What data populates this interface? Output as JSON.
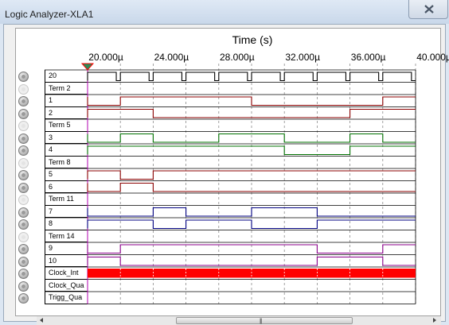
{
  "window": {
    "title": "Logic Analyzer-XLA1"
  },
  "axis": {
    "title": "Time (s)",
    "ticks": [
      "20.000µ",
      "24.000µ",
      "28.000µ",
      "32.000µ",
      "36.000µ",
      "40.000µ"
    ]
  },
  "channels": [
    {
      "label": "20",
      "led": true
    },
    {
      "label": "Term 2",
      "led": false
    },
    {
      "label": "1",
      "led": true
    },
    {
      "label": "2",
      "led": true
    },
    {
      "label": "Term 5",
      "led": false
    },
    {
      "label": "3",
      "led": true
    },
    {
      "label": "4",
      "led": true
    },
    {
      "label": "Term 8",
      "led": false
    },
    {
      "label": "5",
      "led": true
    },
    {
      "label": "6",
      "led": true
    },
    {
      "label": "Term 11",
      "led": false
    },
    {
      "label": "7",
      "led": true
    },
    {
      "label": "8",
      "led": true
    },
    {
      "label": "Term 14",
      "led": false
    },
    {
      "label": "9",
      "led": true
    },
    {
      "label": "10",
      "led": true
    },
    {
      "label": "Clock_Int",
      "led": true
    },
    {
      "label": "Clock_Qua",
      "led": true
    },
    {
      "label": "Trigg_Qua",
      "led": true
    }
  ],
  "waveforms": {
    "time_start_us": 20.0,
    "time_end_us": 40.0,
    "signals": [
      {
        "channel": "20",
        "color": "#000000",
        "type": "pulse",
        "period_us": 2.0,
        "high_us": 1.75
      },
      {
        "channel": "1",
        "color": "#8b0000",
        "initial": 0,
        "edges_us": [
          22.0,
          30.0,
          38.0
        ]
      },
      {
        "channel": "2",
        "color": "#8b0000",
        "initial": 1,
        "edges_us": [
          24.0,
          36.0
        ]
      },
      {
        "channel": "3",
        "color": "#007000",
        "initial": 0,
        "edges_us": [
          22.0,
          24.0,
          28.0,
          32.0,
          36.0,
          38.0
        ]
      },
      {
        "channel": "4",
        "color": "#007000",
        "initial": 1,
        "edges_us": [
          32.0,
          36.0
        ]
      },
      {
        "channel": "5",
        "color": "#8b0000",
        "initial": 1,
        "edges_us": [
          22.0,
          24.0
        ]
      },
      {
        "channel": "6",
        "color": "#8b0000",
        "initial": 0,
        "edges_us": [
          22.0,
          24.0
        ]
      },
      {
        "channel": "7",
        "color": "#000080",
        "initial": 0,
        "edges_us": [
          24.0,
          26.0,
          30.0,
          34.0
        ]
      },
      {
        "channel": "8",
        "color": "#000080",
        "initial": 1,
        "edges_us": [
          24.0,
          26.0,
          30.0,
          34.0
        ]
      },
      {
        "channel": "9",
        "color": "#8b008b",
        "initial": 0,
        "edges_us": [
          22.0,
          34.0,
          38.0
        ]
      },
      {
        "channel": "10",
        "color": "#8b008b",
        "initial": 1,
        "edges_us": [
          22.0,
          34.0,
          38.0
        ]
      },
      {
        "channel": "Clock_Int",
        "color": "#ff0000",
        "type": "clock"
      }
    ]
  },
  "colors": {
    "trigger_marker": "#2e8b57",
    "trigger_marker_outline": "#ff0000",
    "clock_fill": "#ff0000"
  }
}
